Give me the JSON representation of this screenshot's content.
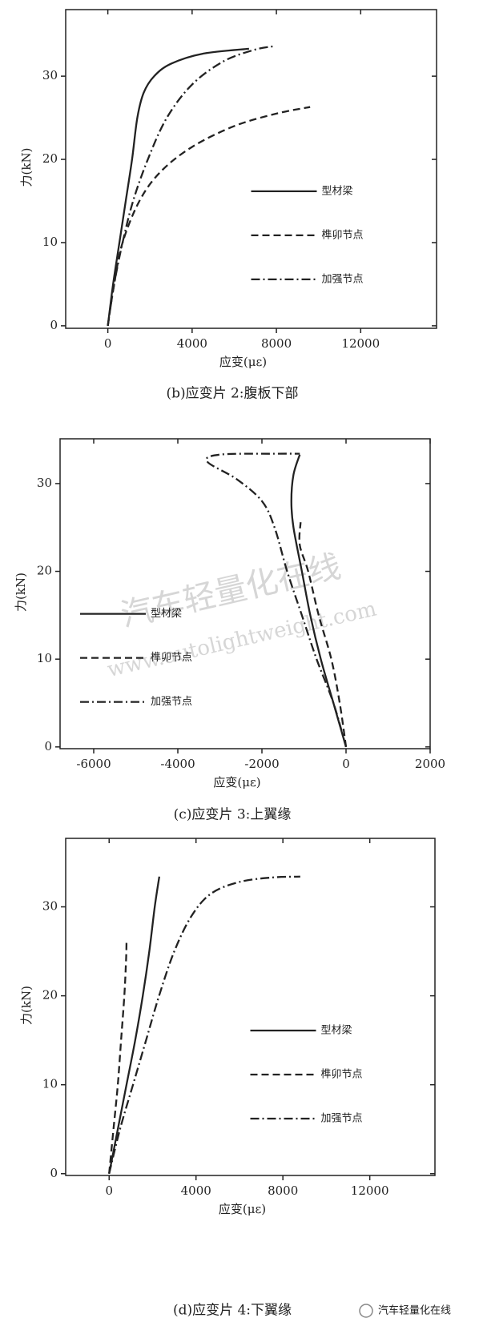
{
  "chart_data": [
    {
      "type": "line",
      "title": "(b)应变片 2:腹板下部",
      "x_label": "应变(με)",
      "y_label": "力(kN)",
      "xlim": [
        -2000,
        15600
      ],
      "ylim": [
        -0.3,
        38
      ],
      "xticks": [
        0,
        4000,
        8000,
        12000
      ],
      "yticks": [
        0,
        10,
        20,
        30
      ],
      "legend": "right",
      "series": [
        {
          "name": "型材梁",
          "color": "#222222",
          "linestyle": "solid",
          "x": [
            0,
            250,
            550,
            850,
            1150,
            1400,
            1700,
            2200,
            3000,
            4500,
            6700
          ],
          "values": [
            0,
            5,
            10,
            15,
            20,
            25,
            28,
            30,
            31.5,
            32.7,
            33.3
          ]
        },
        {
          "name": "榫卯节点",
          "color": "#222222",
          "linestyle": "dashed",
          "x": [
            0,
            300,
            700,
            1500,
            2500,
            4000,
            6000,
            8000,
            9600
          ],
          "values": [
            0,
            5,
            10,
            15,
            18.5,
            21.5,
            24,
            25.5,
            26.3
          ]
        },
        {
          "name": "加强节点",
          "color": "#222222",
          "linestyle": "dashdot",
          "x": [
            0,
            300,
            700,
            1200,
            1900,
            2800,
            4000,
            5500,
            7000,
            7900
          ],
          "values": [
            0,
            5,
            10,
            15,
            20,
            25,
            29,
            31.8,
            33.2,
            33.6
          ]
        }
      ]
    },
    {
      "type": "line",
      "title": "(c)应变片 3:上翼缘",
      "x_label": "应变(με)",
      "y_label": "力(kN)",
      "xlim": [
        -6800,
        2000
      ],
      "ylim": [
        -0.2,
        35.1
      ],
      "xticks": [
        -6000,
        -4000,
        -2000,
        0,
        2000
      ],
      "yticks": [
        0,
        10,
        20,
        30
      ],
      "legend": "left",
      "series": [
        {
          "name": "型材梁",
          "color": "#222222",
          "linestyle": "solid",
          "x": [
            0,
            -300,
            -600,
            -850,
            -1050,
            -1250,
            -1300,
            -1250,
            -1100
          ],
          "values": [
            0,
            5,
            10,
            15,
            20,
            25,
            28,
            31,
            33.3
          ]
        },
        {
          "name": "榫卯节点",
          "color": "#222222",
          "linestyle": "dashed",
          "x": [
            0,
            -150,
            -350,
            -650,
            -900,
            -1100,
            -1080
          ],
          "values": [
            0,
            5,
            10,
            15,
            20,
            23,
            25.6
          ]
        },
        {
          "name": "加强节点",
          "color": "#222222",
          "linestyle": "dashdot",
          "x": [
            0,
            -300,
            -700,
            -1050,
            -1400,
            -1700,
            -2000,
            -2600,
            -3300,
            -3000,
            -1700,
            -1100
          ],
          "values": [
            0,
            5,
            10,
            15,
            20,
            25,
            28,
            30.5,
            32.5,
            33.3,
            33.4,
            33.4
          ]
        }
      ]
    },
    {
      "type": "line",
      "title": "(d)应变片 4:下翼缘",
      "x_label": "应变(με)",
      "y_label": "力(kN)",
      "xlim": [
        -2000,
        15000
      ],
      "ylim": [
        -0.2,
        37.7
      ],
      "xticks": [
        0,
        4000,
        8000,
        12000
      ],
      "yticks": [
        0,
        10,
        20,
        30
      ],
      "legend": "right",
      "series": [
        {
          "name": "型材梁",
          "color": "#222222",
          "linestyle": "solid",
          "x": [
            0,
            400,
            800,
            1200,
            1550,
            1850,
            2100,
            2310
          ],
          "values": [
            0,
            5,
            10,
            15,
            20,
            25,
            30,
            33.4
          ]
        },
        {
          "name": "榫卯节点",
          "color": "#222222",
          "linestyle": "dashed",
          "x": [
            0,
            200,
            400,
            550,
            700,
            780,
            800
          ],
          "values": [
            0,
            5,
            10,
            15,
            20,
            24,
            26
          ]
        },
        {
          "name": "加强节点",
          "color": "#222222",
          "linestyle": "dashdot",
          "x": [
            0,
            500,
            1100,
            1700,
            2300,
            3000,
            3800,
            4700,
            6000,
            7500,
            8800
          ],
          "values": [
            0,
            5,
            10,
            15,
            20,
            25,
            29,
            31.5,
            32.8,
            33.3,
            33.4
          ]
        }
      ]
    }
  ],
  "watermark": {
    "title": "汽车轻量化在线",
    "url": "www.autolightweight.com"
  },
  "logo": "汽车轻量化在线"
}
